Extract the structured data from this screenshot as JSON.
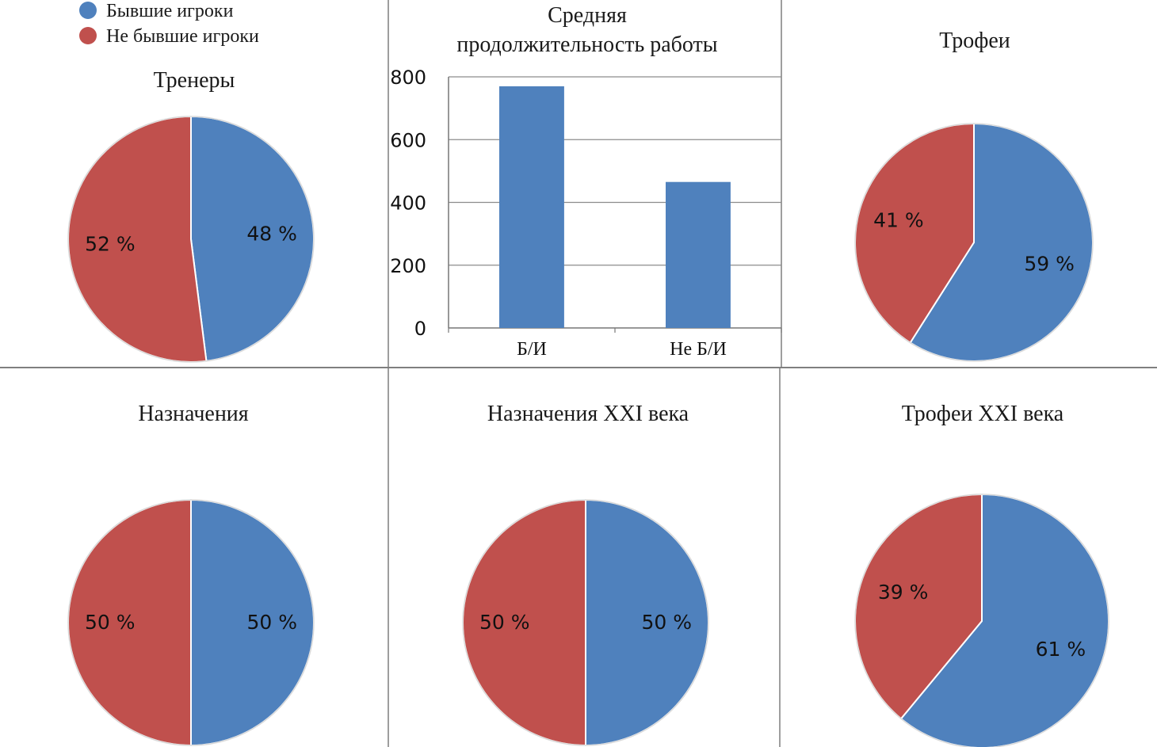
{
  "colors": {
    "former_players": "#4f81bd",
    "non_former_players": "#c0504d",
    "divider": "#7f7f7f",
    "gridline": "#8c8c8c"
  },
  "legend": {
    "items": [
      {
        "label": "Бывшие игроки",
        "color": "#4f81bd"
      },
      {
        "label": "Не бывшие игроки",
        "color": "#c0504d"
      }
    ]
  },
  "chart_data": [
    {
      "type": "pie",
      "title": "Тренеры",
      "slices": [
        {
          "series": "Бывшие игроки",
          "value": 48,
          "label": "48 %"
        },
        {
          "series": "Не бывшие игроки",
          "value": 52,
          "label": "52 %"
        }
      ]
    },
    {
      "type": "bar",
      "title_lines": [
        "Средняя",
        "продолжительность работы"
      ],
      "categories": [
        "Б/И",
        "Не Б/И"
      ],
      "values": [
        770,
        465
      ],
      "ylim": [
        0,
        800
      ],
      "yticks": [
        0,
        200,
        400,
        600,
        800
      ],
      "grid": true
    },
    {
      "type": "pie",
      "title": "Трофеи",
      "slices": [
        {
          "series": "Бывшие игроки",
          "value": 59,
          "label": "59 %"
        },
        {
          "series": "Не бывшие игроки",
          "value": 41,
          "label": "41 %"
        }
      ]
    },
    {
      "type": "pie",
      "title": "Назначения",
      "slices": [
        {
          "series": "Бывшие игроки",
          "value": 50,
          "label": "50 %"
        },
        {
          "series": "Не бывшие игроки",
          "value": 50,
          "label": "50 %"
        }
      ]
    },
    {
      "type": "pie",
      "title": "Назначения XXI века",
      "slices": [
        {
          "series": "Бывшие игроки",
          "value": 50,
          "label": "50 %"
        },
        {
          "series": "Не бывшие игроки",
          "value": 50,
          "label": "50 %"
        }
      ]
    },
    {
      "type": "pie",
      "title": "Трофеи XXI века",
      "slices": [
        {
          "series": "Бывшие игроки",
          "value": 61,
          "label": "61 %"
        },
        {
          "series": "Не бывшие игроки",
          "value": 39,
          "label": "39 %"
        }
      ]
    }
  ]
}
